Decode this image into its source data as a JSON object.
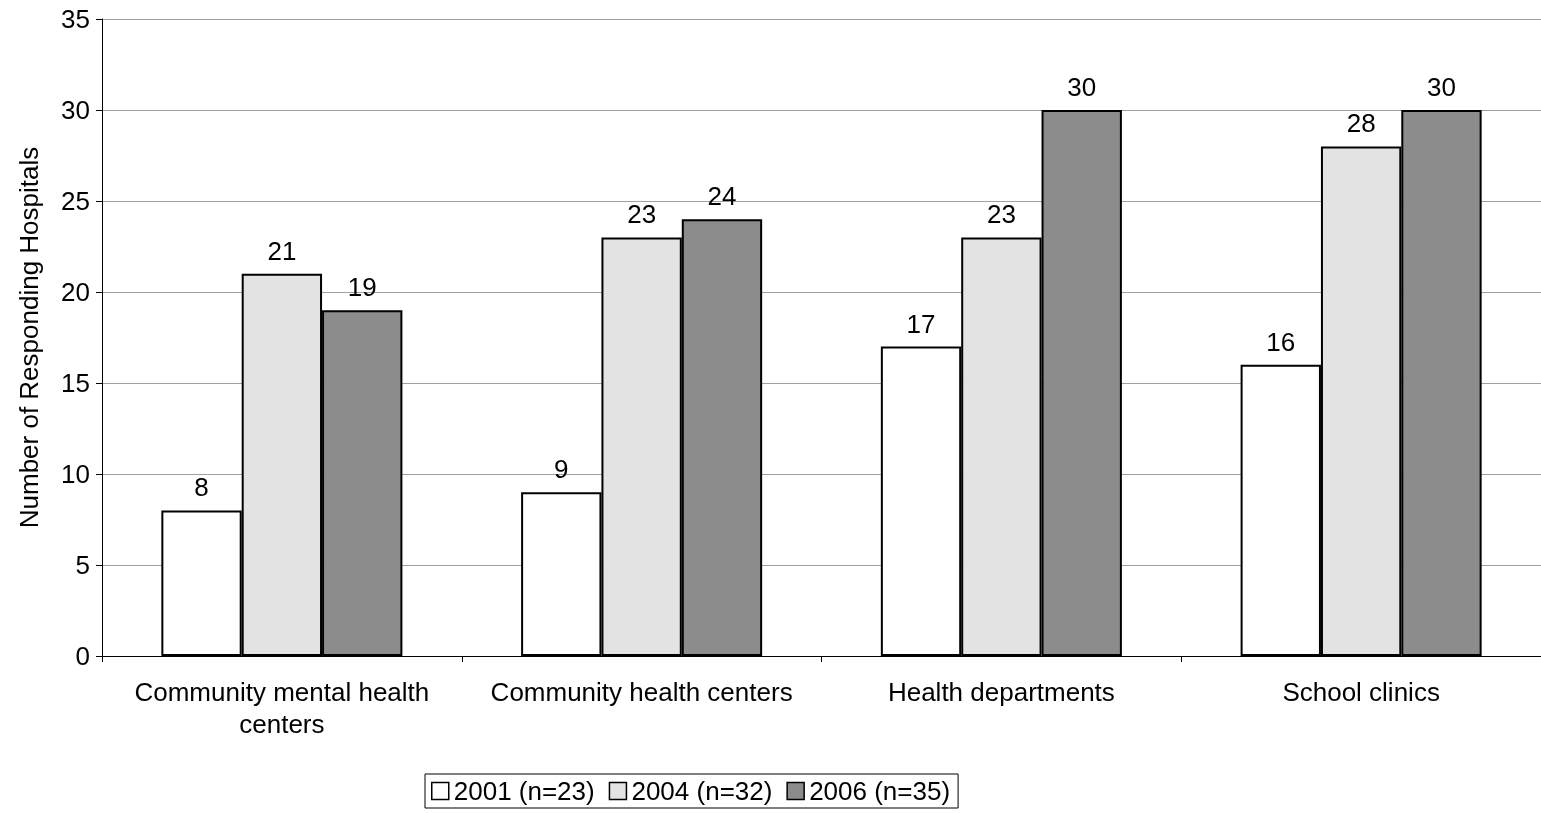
{
  "chart_data": {
    "type": "bar",
    "ylabel": "Number of Responding Hospitals",
    "categories": [
      "Community mental health centers",
      "Community health centers",
      "Health departments",
      "School clinics"
    ],
    "series": [
      {
        "name": "2001 (n=23)",
        "color": "#ffffff",
        "values": [
          8,
          9,
          17,
          16
        ]
      },
      {
        "name": "2004 (n=32)",
        "color": "#e3e3e3",
        "values": [
          21,
          23,
          23,
          28
        ]
      },
      {
        "name": "2006 (n=35)",
        "color": "#8c8c8c",
        "values": [
          19,
          24,
          30,
          30
        ]
      }
    ],
    "ylim": [
      0,
      35
    ],
    "yticks": [
      0,
      5,
      10,
      15,
      20,
      25,
      30,
      35
    ],
    "grid": "y",
    "legend": "bottom",
    "data_labels": true
  }
}
